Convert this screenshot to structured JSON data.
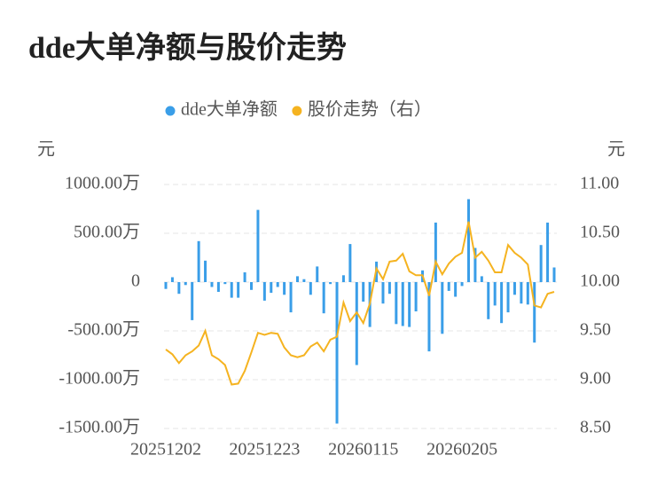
{
  "chart_data": {
    "type": "bar-line",
    "title": "dde大单净额与股价走势",
    "y_label": "元",
    "y2_label": "元",
    "grid": true,
    "categories": [
      "20251202",
      null,
      null,
      null,
      null,
      null,
      null,
      null,
      null,
      null,
      null,
      null,
      null,
      null,
      null,
      "20251223",
      null,
      null,
      null,
      null,
      null,
      null,
      null,
      null,
      null,
      null,
      null,
      null,
      null,
      null,
      "20260115",
      null,
      null,
      null,
      null,
      null,
      null,
      null,
      null,
      null,
      null,
      null,
      null,
      null,
      null,
      "20260205",
      null,
      null,
      null,
      null,
      null,
      null,
      null,
      null,
      null,
      null,
      null,
      null,
      null,
      null
    ],
    "series": [
      {
        "name": "dde大单净额",
        "type": "bar",
        "color": "#3a9ee8",
        "values": [
          -70,
          50,
          -120,
          -30,
          -390,
          420,
          220,
          -50,
          -100,
          -20,
          -160,
          -160,
          100,
          -80,
          740,
          -190,
          -110,
          -50,
          -130,
          -310,
          60,
          30,
          -130,
          160,
          -320,
          -20,
          -1450,
          70,
          390,
          -850,
          -200,
          -460,
          210,
          -220,
          -120,
          -430,
          -450,
          -460,
          -300,
          120,
          -710,
          610,
          -530,
          -90,
          -150,
          -40,
          850,
          350,
          60,
          -380,
          -240,
          -420,
          -310,
          -130,
          -220,
          -230,
          -620,
          380,
          610,
          150
        ]
      },
      {
        "name": "股价走势（右）",
        "type": "line",
        "axis": "y2",
        "color": "#f5b320",
        "values": [
          9.31,
          9.26,
          9.17,
          9.25,
          9.29,
          9.35,
          9.5,
          9.25,
          9.21,
          9.15,
          8.95,
          8.96,
          9.09,
          9.28,
          9.48,
          9.46,
          9.48,
          9.47,
          9.33,
          9.25,
          9.23,
          9.25,
          9.34,
          9.38,
          9.29,
          9.41,
          9.44,
          9.79,
          9.6,
          9.69,
          9.58,
          9.78,
          10.14,
          10.03,
          10.21,
          10.22,
          10.29,
          10.11,
          10.07,
          10.07,
          9.86,
          10.21,
          10.08,
          10.19,
          10.26,
          10.3,
          10.62,
          10.25,
          10.31,
          10.22,
          10.1,
          10.1,
          10.38,
          10.3,
          10.25,
          10.18,
          9.76,
          9.74,
          9.88,
          9.9
        ]
      }
    ],
    "ylim": [
      -1500,
      1000
    ],
    "yticks": [
      {
        "value": 1000,
        "label": "1000.00万"
      },
      {
        "value": 500,
        "label": "500.00万"
      },
      0,
      {
        "value": -500,
        "label": "-500.00万"
      },
      {
        "value": -1000,
        "label": "-1000.00万"
      },
      {
        "value": -1500,
        "label": "-1500.00万"
      }
    ],
    "y2lim": [
      8.5,
      11
    ],
    "y2ticks": [
      {
        "value": 11,
        "label": "11.00"
      },
      {
        "value": 10.5,
        "label": "10.50"
      },
      {
        "value": 10,
        "label": "10.00"
      },
      {
        "value": 9.5,
        "label": "9.50"
      },
      {
        "value": 9,
        "label": "9.00"
      },
      {
        "value": 8.5,
        "label": "8.50"
      }
    ]
  }
}
